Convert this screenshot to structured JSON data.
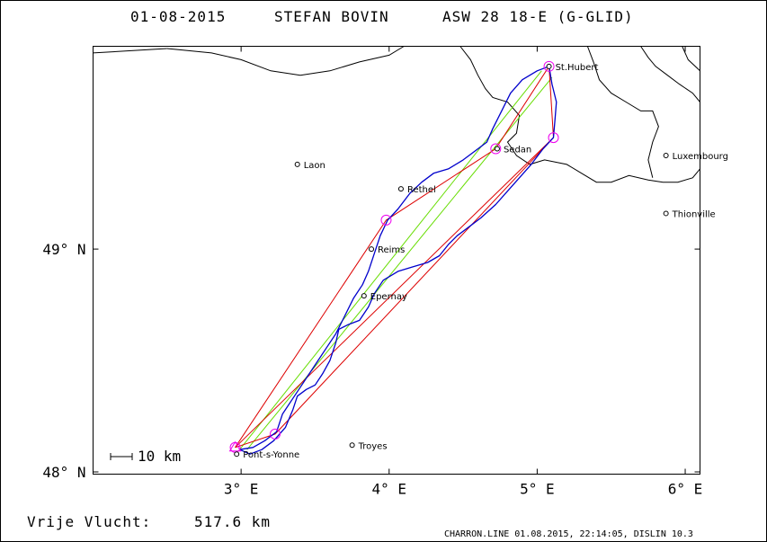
{
  "header": {
    "date": "01-08-2015",
    "pilot": "STEFAN BOVIN",
    "glider": "ASW 28 18-E (G-GLID)"
  },
  "footer": {
    "free_flight_label": "Vrije Vlucht:",
    "free_flight_value": "517.6 km",
    "program": "CHARRON.LINE 01.08.2015, 22:14:05, DISLIN 10.3"
  },
  "scale_label": "10 km",
  "colors": {
    "border": "#000000",
    "track": "#0000cc",
    "course": "#dd0000",
    "sector": "#66dd00",
    "turnpoint": "#ee00ee",
    "country": "#000000"
  },
  "chart_data": {
    "type": "map",
    "x_axis": {
      "unit": "degrees E",
      "min": 2.0,
      "max": 6.1,
      "ticks": [
        {
          "value": 3,
          "label": "3° E"
        },
        {
          "value": 4,
          "label": "4° E"
        },
        {
          "value": 5,
          "label": "5° E"
        },
        {
          "value": 6,
          "label": "6° E"
        }
      ]
    },
    "y_axis": {
      "unit": "degrees N",
      "min": 47.99,
      "max": 49.91,
      "ticks": [
        {
          "value": 48,
          "label": "48° N"
        },
        {
          "value": 49,
          "label": "49° N"
        }
      ]
    },
    "cities": [
      {
        "name": "St.Hubert",
        "lon": 5.08,
        "lat": 49.82
      },
      {
        "name": "Sedan",
        "lon": 4.73,
        "lat": 49.45
      },
      {
        "name": "Luxembourg",
        "lon": 5.87,
        "lat": 49.42
      },
      {
        "name": "Laon",
        "lon": 3.38,
        "lat": 49.38
      },
      {
        "name": "Rethel",
        "lon": 4.08,
        "lat": 49.27
      },
      {
        "name": "Thionville",
        "lon": 5.87,
        "lat": 49.16
      },
      {
        "name": "Reims",
        "lon": 3.88,
        "lat": 49.0
      },
      {
        "name": "Epernay",
        "lon": 3.83,
        "lat": 48.79
      },
      {
        "name": "Troyes",
        "lon": 3.75,
        "lat": 48.12
      },
      {
        "name": "Pont-s-Yonne",
        "lon": 2.97,
        "lat": 48.08
      }
    ],
    "turnpoints": [
      {
        "lon": 2.96,
        "lat": 48.11
      },
      {
        "lon": 3.23,
        "lat": 48.17
      },
      {
        "lon": 3.98,
        "lat": 49.13
      },
      {
        "lon": 4.72,
        "lat": 49.45
      },
      {
        "lon": 5.08,
        "lat": 49.82
      },
      {
        "lon": 5.11,
        "lat": 49.5
      }
    ],
    "course_lines": [
      [
        [
          2.96,
          48.11
        ],
        [
          3.98,
          49.13
        ],
        [
          4.72,
          49.45
        ],
        [
          5.08,
          49.82
        ],
        [
          5.11,
          49.5
        ],
        [
          3.23,
          48.17
        ],
        [
          2.96,
          48.11
        ]
      ],
      [
        [
          2.96,
          48.11
        ],
        [
          5.11,
          49.5
        ]
      ]
    ],
    "sector_lines": [
      [
        [
          2.99,
          48.1
        ],
        [
          5.03,
          49.8
        ]
      ],
      [
        [
          3.04,
          48.1
        ],
        [
          5.1,
          49.77
        ]
      ]
    ],
    "track": [
      [
        2.99,
        48.1
      ],
      [
        3.06,
        48.08
      ],
      [
        3.14,
        48.1
      ],
      [
        3.22,
        48.14
      ],
      [
        3.3,
        48.2
      ],
      [
        3.35,
        48.28
      ],
      [
        3.38,
        48.34
      ],
      [
        3.44,
        48.37
      ],
      [
        3.5,
        48.39
      ],
      [
        3.55,
        48.44
      ],
      [
        3.6,
        48.5
      ],
      [
        3.64,
        48.58
      ],
      [
        3.66,
        48.64
      ],
      [
        3.72,
        48.66
      ],
      [
        3.8,
        48.68
      ],
      [
        3.86,
        48.74
      ],
      [
        3.9,
        48.8
      ],
      [
        3.96,
        48.86
      ],
      [
        4.06,
        48.9
      ],
      [
        4.16,
        48.92
      ],
      [
        4.26,
        48.94
      ],
      [
        4.34,
        48.97
      ],
      [
        4.4,
        49.02
      ],
      [
        4.46,
        49.06
      ],
      [
        4.54,
        49.1
      ],
      [
        4.62,
        49.14
      ],
      [
        4.72,
        49.2
      ],
      [
        4.8,
        49.26
      ],
      [
        4.88,
        49.32
      ],
      [
        4.96,
        49.38
      ],
      [
        5.04,
        49.45
      ],
      [
        5.11,
        49.5
      ],
      [
        5.12,
        49.58
      ],
      [
        5.13,
        49.66
      ],
      [
        5.1,
        49.74
      ],
      [
        5.08,
        49.82
      ],
      [
        5.0,
        49.8
      ],
      [
        4.9,
        49.76
      ],
      [
        4.82,
        49.7
      ],
      [
        4.76,
        49.62
      ],
      [
        4.7,
        49.54
      ],
      [
        4.66,
        49.48
      ],
      [
        4.58,
        49.44
      ],
      [
        4.5,
        49.4
      ],
      [
        4.4,
        49.36
      ],
      [
        4.3,
        49.34
      ],
      [
        4.22,
        49.3
      ],
      [
        4.14,
        49.25
      ],
      [
        4.06,
        49.18
      ],
      [
        3.99,
        49.13
      ],
      [
        3.94,
        49.06
      ],
      [
        3.9,
        48.98
      ],
      [
        3.86,
        48.9
      ],
      [
        3.82,
        48.84
      ],
      [
        3.76,
        48.78
      ],
      [
        3.7,
        48.7
      ],
      [
        3.64,
        48.62
      ],
      [
        3.58,
        48.56
      ],
      [
        3.52,
        48.5
      ],
      [
        3.46,
        48.44
      ],
      [
        3.4,
        48.38
      ],
      [
        3.34,
        48.32
      ],
      [
        3.28,
        48.26
      ],
      [
        3.24,
        48.18
      ],
      [
        3.16,
        48.14
      ],
      [
        3.08,
        48.11
      ],
      [
        2.99,
        48.1
      ]
    ],
    "country_borders": [
      [
        [
          2.0,
          49.88
        ],
        [
          2.5,
          49.9
        ]
      ],
      [
        [
          2.5,
          49.9
        ],
        [
          2.8,
          49.88
        ],
        [
          3.0,
          49.85
        ],
        [
          3.2,
          49.8
        ],
        [
          3.4,
          49.78
        ],
        [
          3.6,
          49.8
        ],
        [
          3.8,
          49.84
        ],
        [
          4.0,
          49.87
        ],
        [
          4.1,
          49.91
        ]
      ],
      [
        [
          4.48,
          49.91
        ],
        [
          4.55,
          49.85
        ],
        [
          4.6,
          49.78
        ],
        [
          4.65,
          49.72
        ],
        [
          4.7,
          49.68
        ],
        [
          4.8,
          49.66
        ],
        [
          4.88,
          49.6
        ],
        [
          4.86,
          49.52
        ],
        [
          4.8,
          49.48
        ],
        [
          4.86,
          49.42
        ],
        [
          4.95,
          49.38
        ],
        [
          5.05,
          49.4
        ],
        [
          5.2,
          49.38
        ],
        [
          5.3,
          49.34
        ],
        [
          5.4,
          49.3
        ],
        [
          5.5,
          49.3
        ],
        [
          5.62,
          49.33
        ],
        [
          5.75,
          49.31
        ],
        [
          5.85,
          49.3
        ],
        [
          5.95,
          49.3
        ],
        [
          6.05,
          49.32
        ],
        [
          6.1,
          49.36
        ]
      ],
      [
        [
          5.34,
          49.91
        ],
        [
          5.38,
          49.84
        ],
        [
          5.42,
          49.76
        ],
        [
          5.5,
          49.7
        ],
        [
          5.6,
          49.66
        ],
        [
          5.7,
          49.62
        ],
        [
          5.78,
          49.62
        ],
        [
          5.82,
          49.55
        ],
        [
          5.78,
          49.48
        ],
        [
          5.75,
          49.4
        ],
        [
          5.78,
          49.32
        ]
      ],
      [
        [
          5.7,
          49.91
        ],
        [
          5.75,
          49.86
        ],
        [
          5.8,
          49.82
        ],
        [
          5.88,
          49.78
        ],
        [
          5.96,
          49.74
        ],
        [
          6.05,
          49.7
        ],
        [
          6.1,
          49.66
        ]
      ],
      [
        [
          5.98,
          49.91
        ],
        [
          6.02,
          49.85
        ],
        [
          6.1,
          49.8
        ]
      ]
    ],
    "scale_bar": {
      "label": "10 km",
      "km": 10
    }
  }
}
